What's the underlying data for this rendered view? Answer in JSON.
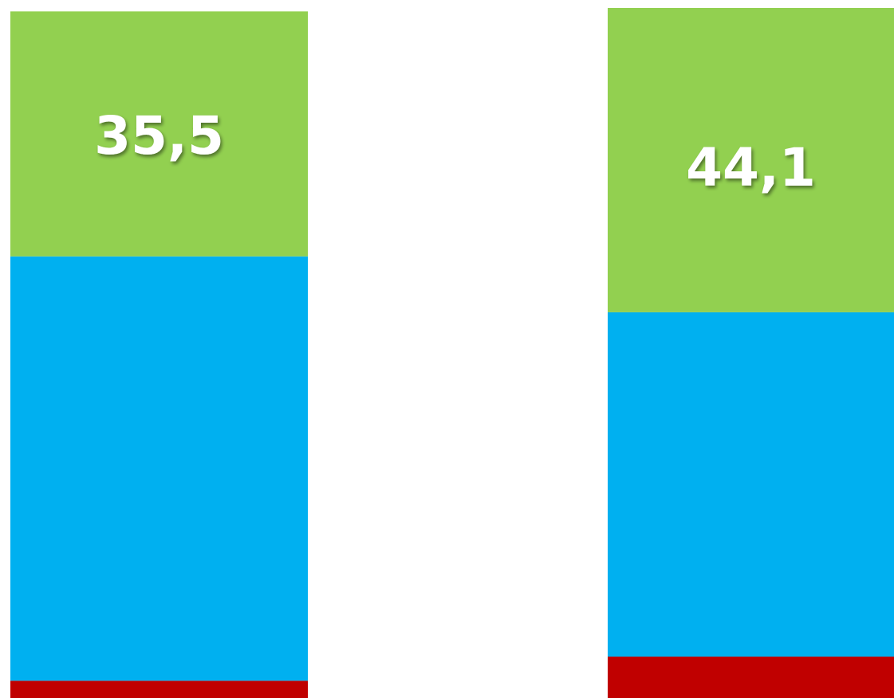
{
  "chart_data": {
    "type": "bar",
    "stacked": true,
    "orientation": "vertical",
    "grid": false,
    "legend": "none",
    "categories": [
      "",
      ""
    ],
    "series": [
      {
        "color": "#c00000",
        "values": [
          2.5,
          6.0
        ]
      },
      {
        "color": "#00b0f0",
        "values": [
          61.5,
          49.9
        ]
      },
      {
        "color": "#92d050",
        "values": [
          35.5,
          44.1
        ]
      }
    ],
    "data_labels": [
      {
        "series_index": 2,
        "labels": [
          "35,5",
          "44,1"
        ]
      }
    ],
    "ylim": [
      0,
      100
    ]
  }
}
